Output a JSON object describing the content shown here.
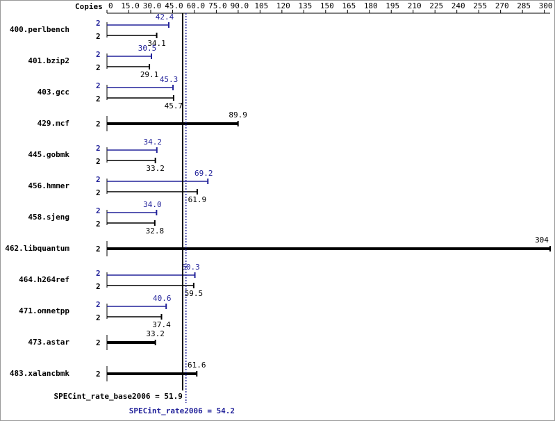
{
  "chart_data": {
    "type": "spec-bar",
    "copies_label": "Copies",
    "categories": [
      "400.perlbench",
      "401.bzip2",
      "403.gcc",
      "429.mcf",
      "445.gobmk",
      "456.hmmer",
      "458.sjeng",
      "462.libquantum",
      "464.h264ref",
      "471.omnetpp",
      "473.astar",
      "483.xalancbmk"
    ],
    "series": [
      {
        "name": "peak",
        "color": "#22229a",
        "copies": [
          2,
          2,
          2,
          null,
          2,
          2,
          2,
          null,
          2,
          2,
          null,
          null
        ],
        "values": [
          42.4,
          30.5,
          45.3,
          null,
          34.2,
          69.2,
          34.0,
          null,
          60.3,
          40.6,
          null,
          null
        ],
        "value_labels": [
          "42.4",
          "30.5",
          "45.3",
          null,
          "34.2",
          "69.2",
          "34.0",
          null,
          "60.3",
          "40.6",
          null,
          null
        ]
      },
      {
        "name": "base",
        "color": "#000000",
        "copies": [
          2,
          2,
          2,
          2,
          2,
          2,
          2,
          2,
          2,
          2,
          2,
          2
        ],
        "values": [
          34.1,
          29.1,
          45.7,
          89.9,
          33.2,
          61.9,
          32.8,
          304,
          59.5,
          37.4,
          33.2,
          61.6
        ],
        "value_labels": [
          "34.1",
          "29.1",
          "45.7",
          "89.9",
          "33.2",
          "61.9",
          "32.8",
          "304",
          "59.5",
          "37.4",
          "33.2",
          "61.6"
        ]
      }
    ],
    "base_summary": {
      "label": "SPECint_rate_base2006 = 51.9",
      "value": 51.9
    },
    "peak_summary": {
      "label": "SPECint_rate2006 = 54.2",
      "value": 54.2
    },
    "xlim": [
      0,
      304
    ],
    "xticks": [
      0,
      {
        "value": 15,
        "label": "15.0"
      },
      {
        "value": 30,
        "label": "30.0"
      },
      {
        "value": 45,
        "label": "45.0"
      },
      {
        "value": 60,
        "label": "60.0"
      },
      {
        "value": 75,
        "label": "75.0"
      },
      {
        "value": 90,
        "label": "90.0"
      },
      105,
      120,
      135,
      150,
      165,
      180,
      195,
      210,
      225,
      240,
      255,
      270,
      285,
      300
    ]
  }
}
